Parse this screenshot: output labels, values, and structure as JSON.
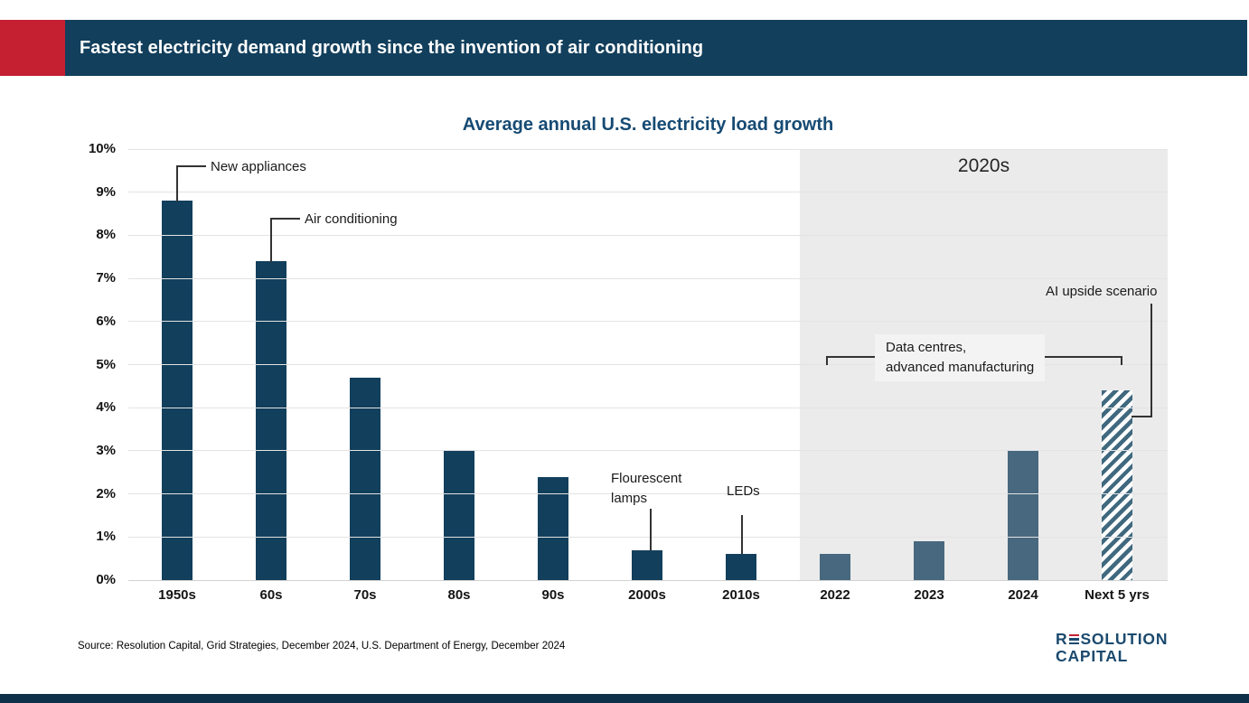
{
  "header": {
    "title": "Fastest electricity demand growth since the invention of air conditioning"
  },
  "chart": {
    "title": "Average annual U.S. electricity load growth"
  },
  "chart_data": {
    "type": "bar",
    "title": "Average annual U.S. electricity load growth",
    "categories": [
      "1950s",
      "60s",
      "70s",
      "80s",
      "90s",
      "2000s",
      "2010s",
      "2022",
      "2023",
      "2024",
      "Next 5 yrs"
    ],
    "values": [
      8.8,
      7.4,
      4.7,
      3.0,
      2.4,
      0.7,
      0.6,
      0.6,
      0.9,
      3.0,
      4.4
    ],
    "bar_styles": [
      "navy",
      "navy",
      "navy",
      "navy",
      "navy",
      "navy",
      "navy",
      "steel",
      "steel",
      "steel",
      "hatched"
    ],
    "ylim": [
      0,
      10
    ],
    "ytick_labels": [
      "0%",
      "1%",
      "2%",
      "3%",
      "4%",
      "5%",
      "6%",
      "7%",
      "8%",
      "9%",
      "10%"
    ],
    "grid": "horizontal",
    "legend": "none",
    "highlight_region": {
      "label": "2020s",
      "start_category": "2022",
      "end_category": "Next 5 yrs"
    },
    "annotations": [
      {
        "target": "1950s",
        "text": "New appliances"
      },
      {
        "target": "60s",
        "text": "Air conditioning"
      },
      {
        "target": "2000s",
        "text": "Flourescent lamps"
      },
      {
        "target": "2010s",
        "text": "LEDs"
      },
      {
        "target": "2022-2024",
        "text": "Data centres, advanced manufacturing"
      },
      {
        "target": "Next 5 yrs",
        "text": "AI upside scenario"
      }
    ],
    "colors": {
      "navy_bar": "#123f5c",
      "steel_bar": "#47687f",
      "hatch_stripe": "#40697f",
      "region_bg": "#ebebeb",
      "accent_red": "#c42032"
    }
  },
  "annotations": {
    "new_appliances": "New appliances",
    "air_conditioning": "Air conditioning",
    "fluorescent_line1": "Flourescent",
    "fluorescent_line2": "lamps",
    "leds": "LEDs",
    "data_centres_line1": "Data centres,",
    "data_centres_line2": "advanced manufacturing",
    "ai_upside": "AI upside scenario"
  },
  "footer": {
    "source": "Source: Resolution Capital, Grid Strategies, December 2024, U.S. Department of Energy, December 2024",
    "logo_line1_first": "R",
    "logo_line1_rest": "SOLUTION",
    "logo_line2": "CAPITAL"
  }
}
